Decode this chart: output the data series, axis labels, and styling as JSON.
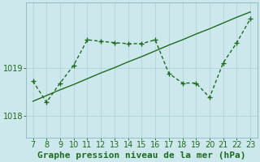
{
  "x": [
    7,
    8,
    9,
    10,
    11,
    12,
    13,
    14,
    15,
    16,
    17,
    18,
    19,
    20,
    21,
    22,
    23
  ],
  "y_data": [
    1018.72,
    1018.28,
    1018.68,
    1019.05,
    1019.58,
    1019.55,
    1019.52,
    1019.5,
    1019.5,
    1019.58,
    1018.88,
    1018.68,
    1018.68,
    1018.38,
    1019.1,
    1019.52,
    1020.02
  ],
  "y_trend": [
    1018.3,
    1018.42,
    1018.54,
    1018.65,
    1018.77,
    1018.89,
    1019.0,
    1019.12,
    1019.23,
    1019.35,
    1019.47,
    1019.58,
    1019.7,
    1019.81,
    1019.93,
    1020.05,
    1020.16
  ],
  "line_color": "#1e6b1e",
  "marker": "+",
  "marker_size": 4,
  "xlabel": "Graphe pression niveau de la mer (hPa)",
  "xlim": [
    6.5,
    23.5
  ],
  "ylim": [
    1017.55,
    1020.35
  ],
  "yticks": [
    1018,
    1019
  ],
  "xticks": [
    7,
    8,
    9,
    10,
    11,
    12,
    13,
    14,
    15,
    16,
    17,
    18,
    19,
    20,
    21,
    22,
    23
  ],
  "bg_color": "#cde8ec",
  "grid_color": "#b0d4da",
  "xlabel_fontsize": 8,
  "xlabel_color": "#1e6b1e",
  "tick_color": "#1e6b1e",
  "tick_fontsize": 7,
  "line_width": 1.0
}
